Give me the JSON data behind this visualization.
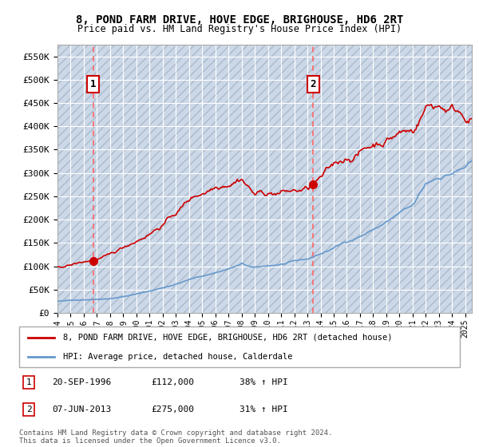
{
  "title": "8, POND FARM DRIVE, HOVE EDGE, BRIGHOUSE, HD6 2RT",
  "subtitle": "Price paid vs. HM Land Registry's House Price Index (HPI)",
  "xlim_start": 1994.0,
  "xlim_end": 2025.5,
  "ylim_min": 0,
  "ylim_max": 575000,
  "yticks": [
    0,
    50000,
    100000,
    150000,
    200000,
    250000,
    300000,
    350000,
    400000,
    450000,
    500000,
    550000
  ],
  "ytick_labels": [
    "£0",
    "£50K",
    "£100K",
    "£150K",
    "£200K",
    "£250K",
    "£300K",
    "£350K",
    "£400K",
    "£450K",
    "£500K",
    "£550K"
  ],
  "sale1_date": 1996.72,
  "sale1_price": 112000,
  "sale1_label": "1",
  "sale2_date": 2013.44,
  "sale2_price": 275000,
  "sale2_label": "2",
  "red_line_color": "#cc0000",
  "blue_line_color": "#6699cc",
  "dashed_line_color": "#ff6666",
  "background_color": "#ddeeff",
  "grid_color": "#ffffff",
  "legend_label_red": "8, POND FARM DRIVE, HOVE EDGE, BRIGHOUSE, HD6 2RT (detached house)",
  "legend_label_blue": "HPI: Average price, detached house, Calderdale",
  "footer": "Contains HM Land Registry data © Crown copyright and database right 2024.\nThis data is licensed under the Open Government Licence v3.0.",
  "box_edge_color": "#cc0000",
  "sale1_date_str": "20-SEP-1996",
  "sale1_price_str": "£112,000",
  "sale1_hpi_str": "38% ↑ HPI",
  "sale2_date_str": "07-JUN-2013",
  "sale2_price_str": "£275,000",
  "sale2_hpi_str": "31% ↑ HPI"
}
